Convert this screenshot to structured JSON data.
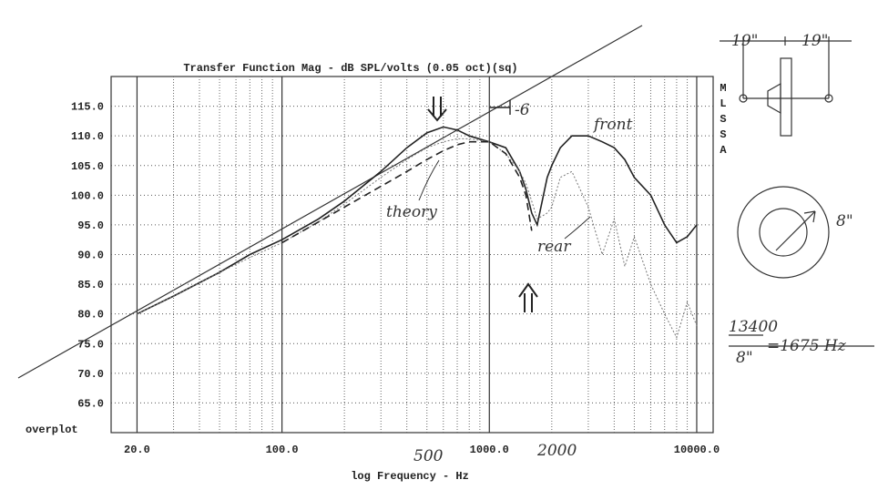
{
  "chart_data": {
    "type": "line",
    "title": "Transfer Function Mag - dB SPL/volts (0.05 oct)(sq)",
    "x_label": "log Frequency - Hz",
    "side_label": "MLSSA",
    "corner_label": "overplot",
    "log_x": true,
    "grid": true,
    "xlim": [
      15,
      12000
    ],
    "ylim": [
      60,
      120
    ],
    "xticks": [
      {
        "value": 20,
        "label": "20.0"
      },
      {
        "value": 100,
        "label": "100.0"
      },
      {
        "value": 1000,
        "label": "1000.0"
      },
      {
        "value": 10000,
        "label": "10000.0"
      }
    ],
    "x_minor_grid": [
      30,
      40,
      50,
      60,
      70,
      80,
      90,
      200,
      300,
      400,
      500,
      600,
      700,
      800,
      900,
      2000,
      3000,
      4000,
      5000,
      6000,
      7000,
      8000,
      9000
    ],
    "yticks": [
      {
        "value": 65,
        "label": "65.0"
      },
      {
        "value": 70,
        "label": "70.0"
      },
      {
        "value": 75,
        "label": "75.0"
      },
      {
        "value": 80,
        "label": "80.0"
      },
      {
        "value": 85,
        "label": "85.0"
      },
      {
        "value": 90,
        "label": "90.0"
      },
      {
        "value": 95,
        "label": "95.0"
      },
      {
        "value": 100,
        "label": "100.0"
      },
      {
        "value": 105,
        "label": "105.0"
      },
      {
        "value": 110,
        "label": "110.0"
      },
      {
        "value": 115,
        "label": "115.0"
      }
    ],
    "x": [
      20,
      30,
      50,
      70,
      100,
      150,
      200,
      300,
      400,
      500,
      600,
      700,
      800,
      1000,
      1200,
      1400,
      1500,
      1600,
      1700,
      1900,
      2000,
      2200,
      2500,
      3000,
      3500,
      4000,
      4500,
      5000,
      6000,
      7000,
      8000,
      9000,
      10000
    ],
    "series": [
      {
        "name": "front",
        "color": "#222222",
        "dash": "none",
        "values": [
          80,
          83,
          87,
          90,
          92.5,
          96,
          99,
          104,
          108,
          110.5,
          111.5,
          111,
          110,
          109,
          108,
          104,
          101,
          97,
          95,
          103,
          105,
          108,
          110,
          110,
          109,
          108,
          106,
          103,
          100,
          95,
          92,
          93,
          95
        ]
      },
      {
        "name": "rear",
        "color": "#777777",
        "dash": "2 2",
        "values": [
          80,
          83,
          87,
          89.5,
          92,
          95.5,
          98.5,
          103,
          106,
          108,
          109,
          109.5,
          109.5,
          109,
          107,
          104,
          102,
          99,
          96,
          97,
          98,
          103,
          104,
          98,
          90,
          96,
          88,
          93,
          85,
          80,
          76,
          82,
          78
        ]
      },
      {
        "name": "theory",
        "color": "#222222",
        "dash": "8 5",
        "values": [
          null,
          null,
          null,
          null,
          92,
          95.5,
          98,
          101.5,
          104,
          106,
          107.5,
          108.5,
          109,
          109,
          107,
          103,
          100,
          94,
          null,
          null,
          null,
          null,
          null,
          null,
          null,
          null,
          null,
          null,
          null,
          null,
          null,
          null,
          null
        ]
      }
    ],
    "annotations": [
      "-6",
      "500",
      "2000"
    ],
    "notes": [
      "19\"",
      "19\"",
      "8\"",
      "13400",
      "8\"",
      "=1675 Hz"
    ]
  }
}
